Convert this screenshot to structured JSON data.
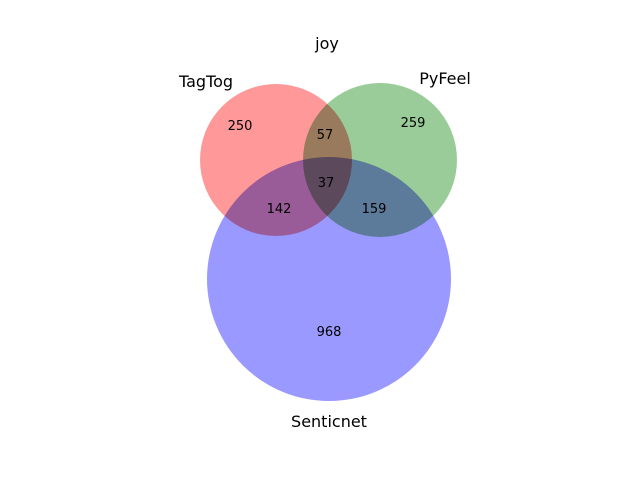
{
  "chart_data": {
    "type": "venn3",
    "title": "joy",
    "sets": [
      {
        "name": "TagTog",
        "color": "#ff8080"
      },
      {
        "name": "PyFeel",
        "color": "#80c080"
      },
      {
        "name": "Senticnet",
        "color": "#8080ff"
      }
    ],
    "regions": {
      "tagtog_only": 250,
      "pyfeel_only": 259,
      "senticnet_only": 968,
      "tagtog_pyfeel": 57,
      "tagtog_senticnet": 142,
      "pyfeel_senticnet": 159,
      "all_three": 37
    }
  }
}
